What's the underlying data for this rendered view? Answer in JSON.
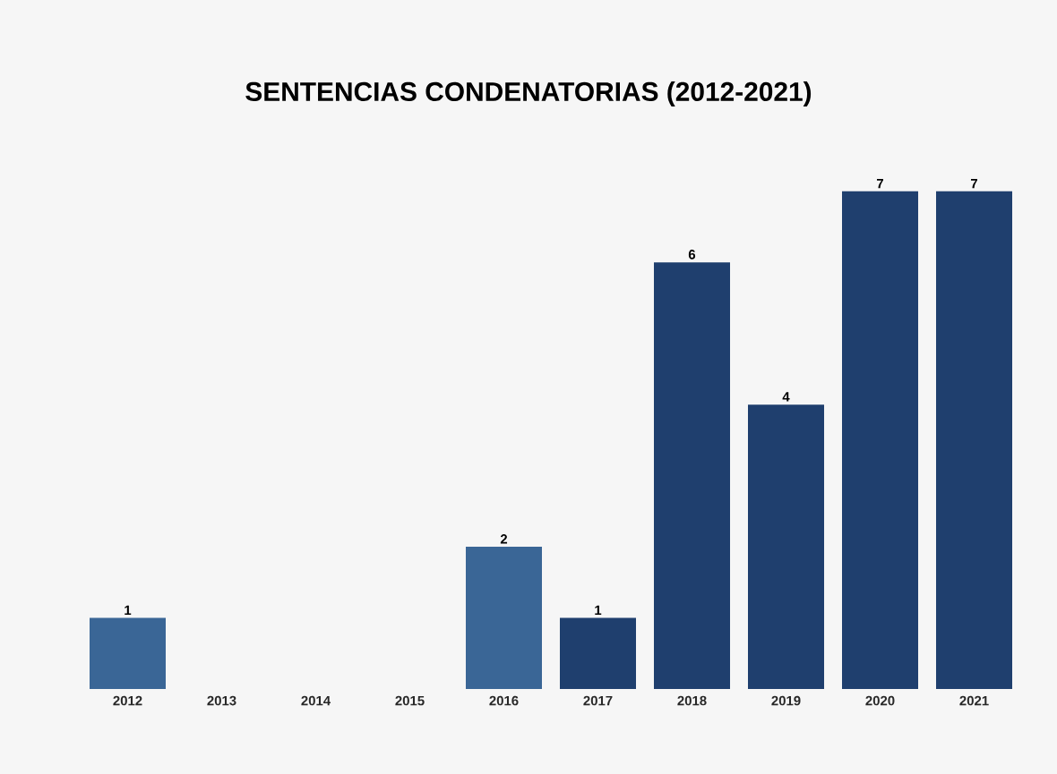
{
  "chart_data": {
    "type": "bar",
    "title": "SENTENCIAS CONDENATORIAS (2012-2021)",
    "categories": [
      "2012",
      "2013",
      "2014",
      "2015",
      "2016",
      "2017",
      "2018",
      "2019",
      "2020",
      "2021"
    ],
    "values": [
      1,
      0,
      0,
      0,
      2,
      1,
      6,
      4,
      7,
      7
    ],
    "colors": [
      "#3a6696",
      "#1f3f6e",
      "#1f3f6e",
      "#1f3f6e",
      "#3a6696",
      "#1f3f6e",
      "#1f3f6e",
      "#1f3f6e",
      "#1f3f6e",
      "#1f3f6e"
    ],
    "value_labels": [
      "1",
      null,
      null,
      null,
      "2",
      "1",
      "6",
      "4",
      "7",
      "7"
    ],
    "data_labels": false
  }
}
